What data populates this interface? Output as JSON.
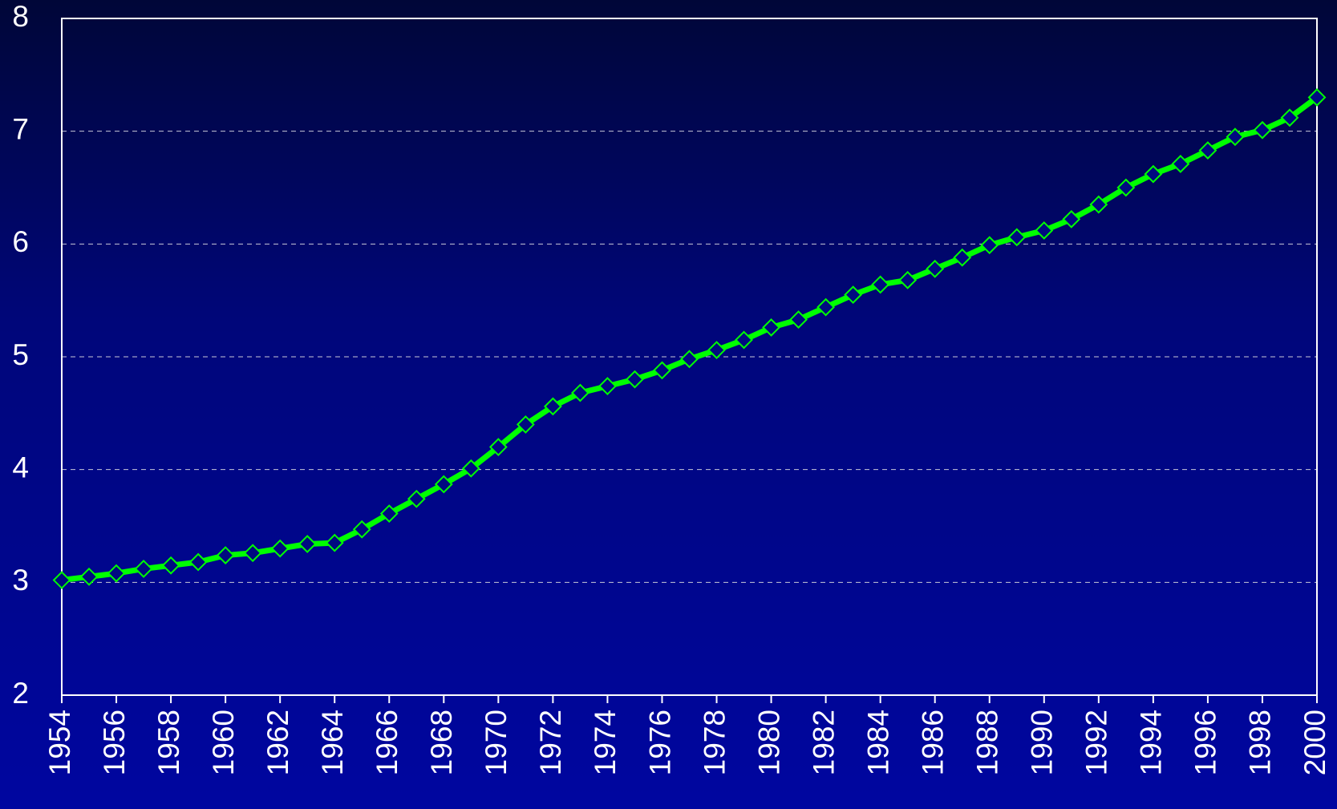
{
  "chart_data": {
    "type": "line",
    "x": [
      1954,
      1955,
      1956,
      1957,
      1958,
      1959,
      1960,
      1961,
      1962,
      1963,
      1964,
      1965,
      1966,
      1967,
      1968,
      1969,
      1970,
      1971,
      1972,
      1973,
      1974,
      1975,
      1976,
      1977,
      1978,
      1979,
      1980,
      1981,
      1982,
      1983,
      1984,
      1985,
      1986,
      1987,
      1988,
      1989,
      1990,
      1991,
      1992,
      1993,
      1994,
      1995,
      1996,
      1997,
      1998,
      1999,
      2000
    ],
    "series": [
      {
        "color": "#00ff00",
        "values": [
          3.02,
          3.05,
          3.08,
          3.12,
          3.15,
          3.18,
          3.24,
          3.26,
          3.3,
          3.34,
          3.35,
          3.47,
          3.61,
          3.74,
          3.87,
          4.01,
          4.2,
          4.4,
          4.56,
          4.68,
          4.74,
          4.8,
          4.88,
          4.98,
          5.06,
          5.15,
          5.26,
          5.33,
          5.44,
          5.55,
          5.64,
          5.68,
          5.78,
          5.88,
          5.99,
          6.06,
          6.12,
          6.22,
          6.35,
          6.5,
          6.62,
          6.71,
          6.83,
          6.95,
          7.01,
          7.12,
          7.3
        ]
      }
    ],
    "xlim": [
      1954,
      2000
    ],
    "xticks": [
      1954,
      1956,
      1958,
      1960,
      1962,
      1964,
      1966,
      1968,
      1970,
      1972,
      1974,
      1976,
      1978,
      1980,
      1982,
      1984,
      1986,
      1988,
      1990,
      1992,
      1994,
      1996,
      1998,
      2000
    ],
    "ylim": [
      2,
      8
    ],
    "yticks": [
      2,
      3,
      4,
      5,
      6,
      7,
      8
    ],
    "grid": true
  }
}
